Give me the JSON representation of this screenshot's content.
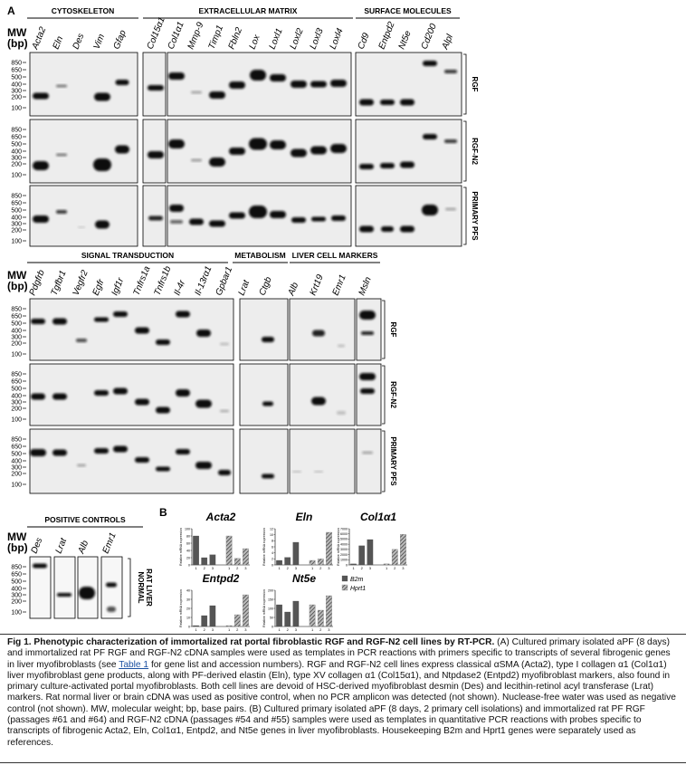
{
  "panel_a_label": "A",
  "mw_label": [
    "MW",
    "(bp)"
  ],
  "mw_ticks": [
    850,
    650,
    500,
    400,
    300,
    200,
    100
  ],
  "top": {
    "sections": [
      {
        "title": "CYTOSKELETON",
        "genes": [
          "Acta2",
          "Eln",
          "Des",
          "Vim",
          "Gfap"
        ]
      },
      {
        "title": "EXTRACELLULAR MATRIX",
        "genes": [
          "Col15α1",
          "Col1α1",
          "Mmp-9",
          "Timp1",
          "Fbln2",
          "Lox",
          "Loxl1",
          "Loxl2",
          "Loxl3",
          "Loxl4"
        ]
      },
      {
        "title": "SURFACE MOLECULES",
        "genes": [
          "Cd9",
          "Entpd2",
          "Nt5e",
          "Cd200",
          "Alpl"
        ]
      }
    ],
    "rows": [
      "RGF",
      "RGF-N2",
      "PRIMARY PFS"
    ]
  },
  "middle": {
    "sections": [
      {
        "title": "SIGNAL TRANSDUCTION",
        "genes": [
          "Pdgfrb",
          "Tgfbr1",
          "Vegfr2",
          "Egfr",
          "Igf1r",
          "Tnfrs1a",
          "Tnfrs1b",
          "Il-4r",
          "Il-13rα1",
          "Gpbar1"
        ]
      },
      {
        "title": "METABOLISM",
        "genes": [
          "Lrat",
          "Ctgb"
        ]
      },
      {
        "title": "LIVER CELL MARKERS",
        "genes": [
          "Alb",
          "Krt19",
          "Emr1",
          "Msln"
        ]
      }
    ],
    "rows": [
      "RGF",
      "RGF-N2",
      "PRIMARY PFS"
    ]
  },
  "positive_controls": {
    "title": "POSITIVE CONTROLS",
    "genes": [
      "Des",
      "Lrat",
      "Alb",
      "Emr1"
    ],
    "label": [
      "NORMAL",
      "RAT LIVER"
    ]
  },
  "panel_b_label": "B",
  "chart_data": [
    {
      "type": "bar",
      "title": "Acta2",
      "y_label": "Relative mRNA expression",
      "categories": [
        "1",
        "2",
        "3"
      ],
      "ylim": [
        0,
        100
      ],
      "yticks": [
        0,
        20,
        40,
        60,
        80,
        100
      ],
      "series": [
        {
          "name": "B2m",
          "color": "#555555",
          "values": [
            80,
            20,
            28
          ]
        },
        {
          "name": "Hprt1",
          "color": "#777777",
          "hatch": true,
          "values": [
            80,
            18,
            45
          ]
        }
      ]
    },
    {
      "type": "bar",
      "title": "Eln",
      "y_label": "Relative mRNA expression",
      "categories": [
        "1",
        "2",
        "3"
      ],
      "ylim": [
        0,
        12
      ],
      "yticks": [
        0,
        2,
        4,
        6,
        8,
        10,
        12
      ],
      "series": [
        {
          "name": "B2m",
          "color": "#555555",
          "values": [
            1.5,
            2.5,
            7.5
          ]
        },
        {
          "name": "Hprt1",
          "color": "#777777",
          "hatch": true,
          "values": [
            1.5,
            2,
            10.8
          ]
        }
      ]
    },
    {
      "type": "bar",
      "title": "Col1α1",
      "y_label": "Relative mRNA expression",
      "categories": [
        "1",
        "2",
        "3"
      ],
      "ylim": [
        0,
        7000
      ],
      "yticks": [
        0,
        1000,
        2000,
        3000,
        4000,
        5000,
        6000,
        7000
      ],
      "series": [
        {
          "name": "B2m",
          "color": "#555555",
          "values": [
            200,
            3700,
            4900
          ]
        },
        {
          "name": "Hprt1",
          "color": "#777777",
          "hatch": true,
          "values": [
            200,
            3000,
            5900
          ]
        }
      ]
    },
    {
      "type": "bar",
      "title": "Entpd2",
      "y_label": "Relative mRNA expression",
      "categories": [
        "1",
        "2",
        "3"
      ],
      "ylim": [
        0,
        40
      ],
      "yticks": [
        0,
        10,
        20,
        30,
        40
      ],
      "series": [
        {
          "name": "B2m",
          "color": "#555555",
          "values": [
            1,
            12,
            23
          ]
        },
        {
          "name": "Hprt1",
          "color": "#777777",
          "hatch": true,
          "values": [
            1,
            13,
            35
          ]
        }
      ]
    },
    {
      "type": "bar",
      "title": "Nt5e",
      "y_label": "Relative mRNA expression",
      "categories": [
        "1",
        "2",
        "3"
      ],
      "ylim": [
        0,
        200
      ],
      "yticks": [
        0,
        50,
        100,
        150,
        200
      ],
      "series": [
        {
          "name": "B2m",
          "color": "#555555",
          "values": [
            120,
            80,
            140
          ]
        },
        {
          "name": "Hprt1",
          "color": "#777777",
          "hatch": true,
          "values": [
            120,
            90,
            170
          ]
        }
      ]
    }
  ],
  "caption": {
    "title": "Fig 1. Phenotypic characterization of immortalized rat portal fibroblastic RGF and RGF-N2 cell lines by RT-PCR.",
    "body_before": " (A) Cultured primary isolated aPF (8 days) and immortalized rat PF RGF and RGF-N2 cDNA samples were used as templates in PCR reactions with primers specific to transcripts of several fibrogenic genes in liver myofibroblasts (see ",
    "link": "Table 1",
    "body_after": " for gene list and accession numbers). RGF and RGF-N2 cell lines express classical αSMA (Acta2), type I collagen α1 (Col1α1) liver myofibroblast gene products, along with PF-derived elastin (Eln), type XV collagen α1 (Col15α1), and Ntpdase2 (Entpd2) myofibroblast markers, also found in primary culture-activated portal myofibroblasts. Both cell lines are devoid of HSC-derived myofibroblast desmin (Des) and lecithin-retinol acyl transferase (Lrat) markers. Rat normal liver or brain cDNA was used as positive control, when no PCR amplicon was detected (not shown). Nuclease-free water was used as negative control (not shown). MW, molecular weight; bp, base pairs. (B) Cultured primary isolated aPF (8 days, 2 primary cell isolations) and immortalized rat PF RGF (passages #61 and #64) and RGF-N2 cDNA (passages #54 and #55) samples were used as templates in quantitative PCR reactions with probes specific to transcripts of fibrogenic Acta2, Eln, Col1α1, Entpd2, and Nt5e genes in liver myofibroblasts. Housekeeping B2m and Hprt1 genes were separately used as references."
  }
}
